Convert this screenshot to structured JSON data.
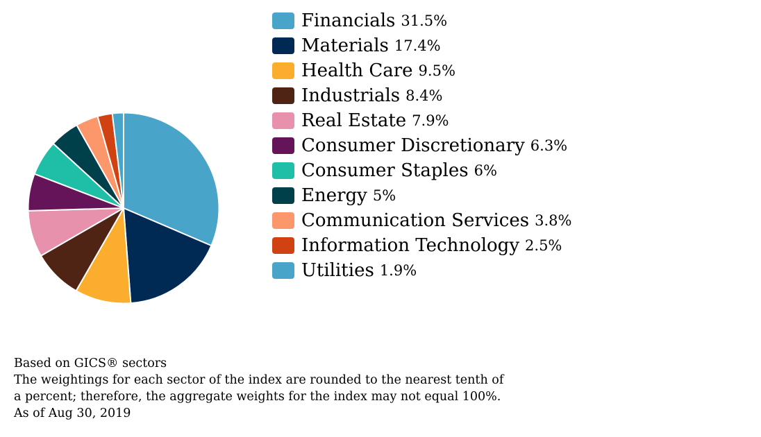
{
  "chart_data": {
    "type": "pie",
    "title": "",
    "unit": "%",
    "slices": [
      {
        "label": "Financials",
        "value": 31.5,
        "display": "31.5%",
        "color": "#48A4C8"
      },
      {
        "label": "Materials",
        "value": 17.4,
        "display": "17.4%",
        "color": "#002A54"
      },
      {
        "label": "Health Care",
        "value": 9.5,
        "display": "9.5%",
        "color": "#FBAE2E"
      },
      {
        "label": "Industrials",
        "value": 8.4,
        "display": "8.4%",
        "color": "#4F2414"
      },
      {
        "label": "Real Estate",
        "value": 7.9,
        "display": "7.9%",
        "color": "#E891AD"
      },
      {
        "label": "Consumer Discretionary",
        "value": 6.3,
        "display": "6.3%",
        "color": "#661459"
      },
      {
        "label": "Consumer Staples",
        "value": 6,
        "display": "6%",
        "color": "#1EBFA6"
      },
      {
        "label": "Energy",
        "value": 5,
        "display": "5%",
        "color": "#00404A"
      },
      {
        "label": "Communication Services",
        "value": 3.8,
        "display": "3.8%",
        "color": "#FC966B"
      },
      {
        "label": "Information Technology",
        "value": 2.5,
        "display": "2.5%",
        "color": "#D14212"
      },
      {
        "label": "Utilities",
        "value": 1.9,
        "display": "1.9%",
        "color": "#48A4C8"
      }
    ],
    "legend_position": "right"
  },
  "footnotes": {
    "line1": "Based on GICS® sectors",
    "line2": "The weightings for each sector of the index are rounded to the nearest tenth of",
    "line3": "a percent; therefore, the aggregate weights for the index may not equal 100%.",
    "line4": "As of Aug 30, 2019"
  }
}
